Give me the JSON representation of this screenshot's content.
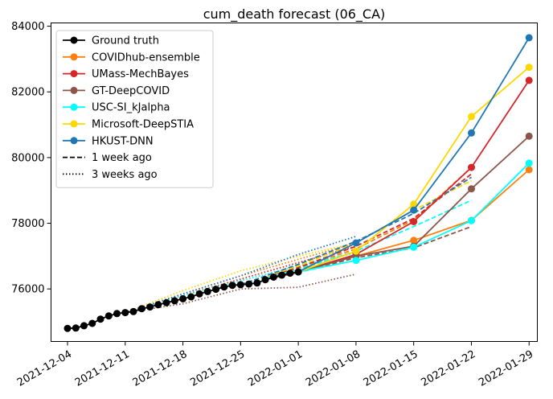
{
  "chart_data": {
    "type": "line",
    "title": "cum_death forecast (06_CA)",
    "xlabel": "",
    "ylabel": "",
    "x_ticks": [
      "2021-12-04",
      "2021-12-11",
      "2021-12-18",
      "2021-12-25",
      "2022-01-01",
      "2022-01-08",
      "2022-01-15",
      "2022-01-22",
      "2022-01-29"
    ],
    "y_ticks": [
      76000,
      78000,
      80000,
      82000,
      84000
    ],
    "xlim": [
      "2021-12-02",
      "2022-01-30"
    ],
    "ylim": [
      74400,
      84100
    ],
    "grid": false,
    "legend_position": "top-left",
    "legend": [
      {
        "label": "Ground truth",
        "style": "solid-marker",
        "color": "#000000"
      },
      {
        "label": "COVIDhub-ensemble",
        "style": "solid-marker",
        "color": "#ff7f0e"
      },
      {
        "label": "UMass-MechBayes",
        "style": "solid-marker",
        "color": "#d62728"
      },
      {
        "label": "GT-DeepCOVID",
        "style": "solid-marker",
        "color": "#8c564b"
      },
      {
        "label": "USC-SI_kJalpha",
        "style": "solid-marker",
        "color": "#00ffff"
      },
      {
        "label": "Microsoft-DeepSTIA",
        "style": "solid-marker",
        "color": "#ffd700"
      },
      {
        "label": "HKUST-DNN",
        "style": "solid-marker",
        "color": "#1f77b4"
      },
      {
        "label": "1 week ago",
        "style": "dashed",
        "color": "#000000"
      },
      {
        "label": "3 weeks ago",
        "style": "dotted",
        "color": "#000000"
      }
    ],
    "ground_truth": {
      "name": "Ground truth",
      "color": "#000000",
      "x": [
        "2021-12-04",
        "2021-12-05",
        "2021-12-06",
        "2021-12-07",
        "2021-12-08",
        "2021-12-09",
        "2021-12-10",
        "2021-12-11",
        "2021-12-12",
        "2021-12-13",
        "2021-12-14",
        "2021-12-15",
        "2021-12-16",
        "2021-12-17",
        "2021-12-18",
        "2021-12-19",
        "2021-12-20",
        "2021-12-21",
        "2021-12-22",
        "2021-12-23",
        "2021-12-24",
        "2021-12-25",
        "2021-12-26",
        "2021-12-27",
        "2021-12-28",
        "2021-12-29",
        "2021-12-30",
        "2021-12-31",
        "2022-01-01"
      ],
      "y": [
        74800,
        74810,
        74880,
        74950,
        75080,
        75180,
        75250,
        75280,
        75310,
        75400,
        75450,
        75520,
        75580,
        75640,
        75700,
        75760,
        75850,
        75920,
        75990,
        76060,
        76110,
        76130,
        76150,
        76180,
        76280,
        76360,
        76420,
        76480,
        76520
      ]
    },
    "series": [
      {
        "name": "COVIDhub-ensemble",
        "color": "#ff7f0e",
        "x": [
          "2022-01-01",
          "2022-01-08",
          "2022-01-15",
          "2022-01-22",
          "2022-01-29"
        ],
        "y": [
          76520,
          77000,
          77480,
          78090,
          79630
        ],
        "dashed": {
          "x": [
            "2021-12-25",
            "2022-01-01",
            "2022-01-08",
            "2022-01-15",
            "2022-01-22"
          ],
          "y": [
            76130,
            76640,
            77220,
            78100,
            79700
          ]
        },
        "dotted": {
          "x": [
            "2021-12-11",
            "2021-12-18",
            "2021-12-25",
            "2022-01-01",
            "2022-01-08"
          ],
          "y": [
            75280,
            75850,
            76400,
            76900,
            77400
          ]
        }
      },
      {
        "name": "UMass-MechBayes",
        "color": "#d62728",
        "x": [
          "2022-01-01",
          "2022-01-08",
          "2022-01-15",
          "2022-01-22",
          "2022-01-29"
        ],
        "y": [
          76520,
          77050,
          78050,
          79700,
          82350
        ],
        "dashed": {
          "x": [
            "2021-12-25",
            "2022-01-01",
            "2022-01-08",
            "2022-01-15",
            "2022-01-22"
          ],
          "y": [
            76130,
            76650,
            77300,
            78150,
            79500
          ]
        },
        "dotted": {
          "x": [
            "2021-12-11",
            "2021-12-18",
            "2021-12-25",
            "2022-01-01",
            "2022-01-08"
          ],
          "y": [
            75280,
            75800,
            76300,
            76800,
            77300
          ]
        }
      },
      {
        "name": "GT-DeepCOVID",
        "color": "#8c564b",
        "x": [
          "2022-01-01",
          "2022-01-08",
          "2022-01-15",
          "2022-01-22",
          "2022-01-29"
        ],
        "y": [
          76520,
          77000,
          77300,
          79050,
          80650
        ],
        "dashed": {
          "x": [
            "2021-12-25",
            "2022-01-01",
            "2022-01-08",
            "2022-01-15",
            "2022-01-22"
          ],
          "y": [
            76130,
            76500,
            76950,
            77250,
            77900
          ]
        },
        "dotted": {
          "x": [
            "2021-12-11",
            "2021-12-18",
            "2021-12-25",
            "2022-01-01",
            "2022-01-08"
          ],
          "y": [
            75280,
            75550,
            76000,
            76050,
            76450
          ]
        }
      },
      {
        "name": "USC-SI_kJalpha",
        "color": "#00ffff",
        "x": [
          "2022-01-01",
          "2022-01-08",
          "2022-01-15",
          "2022-01-22",
          "2022-01-29"
        ],
        "y": [
          76520,
          76870,
          77270,
          78080,
          79830
        ],
        "dashed": {
          "x": [
            "2021-12-25",
            "2022-01-01",
            "2022-01-08",
            "2022-01-15",
            "2022-01-22"
          ],
          "y": [
            76130,
            76600,
            77150,
            77900,
            78700
          ]
        },
        "dotted": {
          "x": [
            "2021-12-11",
            "2021-12-18",
            "2021-12-25",
            "2022-01-01",
            "2022-01-08"
          ],
          "y": [
            75280,
            75800,
            76250,
            76700,
            77100
          ]
        }
      },
      {
        "name": "Microsoft-DeepSTIA",
        "color": "#ffd700",
        "x": [
          "2022-01-01",
          "2022-01-08",
          "2022-01-15",
          "2022-01-22",
          "2022-01-29"
        ],
        "y": [
          76520,
          77150,
          78580,
          81250,
          82750
        ],
        "dashed": {
          "x": [
            "2021-12-25",
            "2022-01-01",
            "2022-01-08",
            "2022-01-15",
            "2022-01-22"
          ],
          "y": [
            76130,
            76700,
            77400,
            78400,
            79300
          ]
        },
        "dotted": {
          "x": [
            "2021-12-11",
            "2021-12-18",
            "2021-12-25",
            "2022-01-01",
            "2022-01-08"
          ],
          "y": [
            75280,
            75950,
            76550,
            77000,
            77400
          ]
        }
      },
      {
        "name": "HKUST-DNN",
        "color": "#1f77b4",
        "x": [
          "2022-01-01",
          "2022-01-08",
          "2022-01-15",
          "2022-01-22",
          "2022-01-29"
        ],
        "y": [
          76520,
          77400,
          78400,
          80750,
          83650
        ],
        "dashed": {
          "x": [
            "2021-12-25",
            "2022-01-01",
            "2022-01-08",
            "2022-01-15",
            "2022-01-22"
          ],
          "y": [
            76130,
            76750,
            77450,
            78300,
            79400
          ]
        },
        "dotted": {
          "x": [
            "2021-12-11",
            "2021-12-18",
            "2021-12-25",
            "2022-01-01",
            "2022-01-08"
          ],
          "y": [
            75280,
            75850,
            76400,
            77050,
            77600
          ]
        }
      }
    ]
  }
}
